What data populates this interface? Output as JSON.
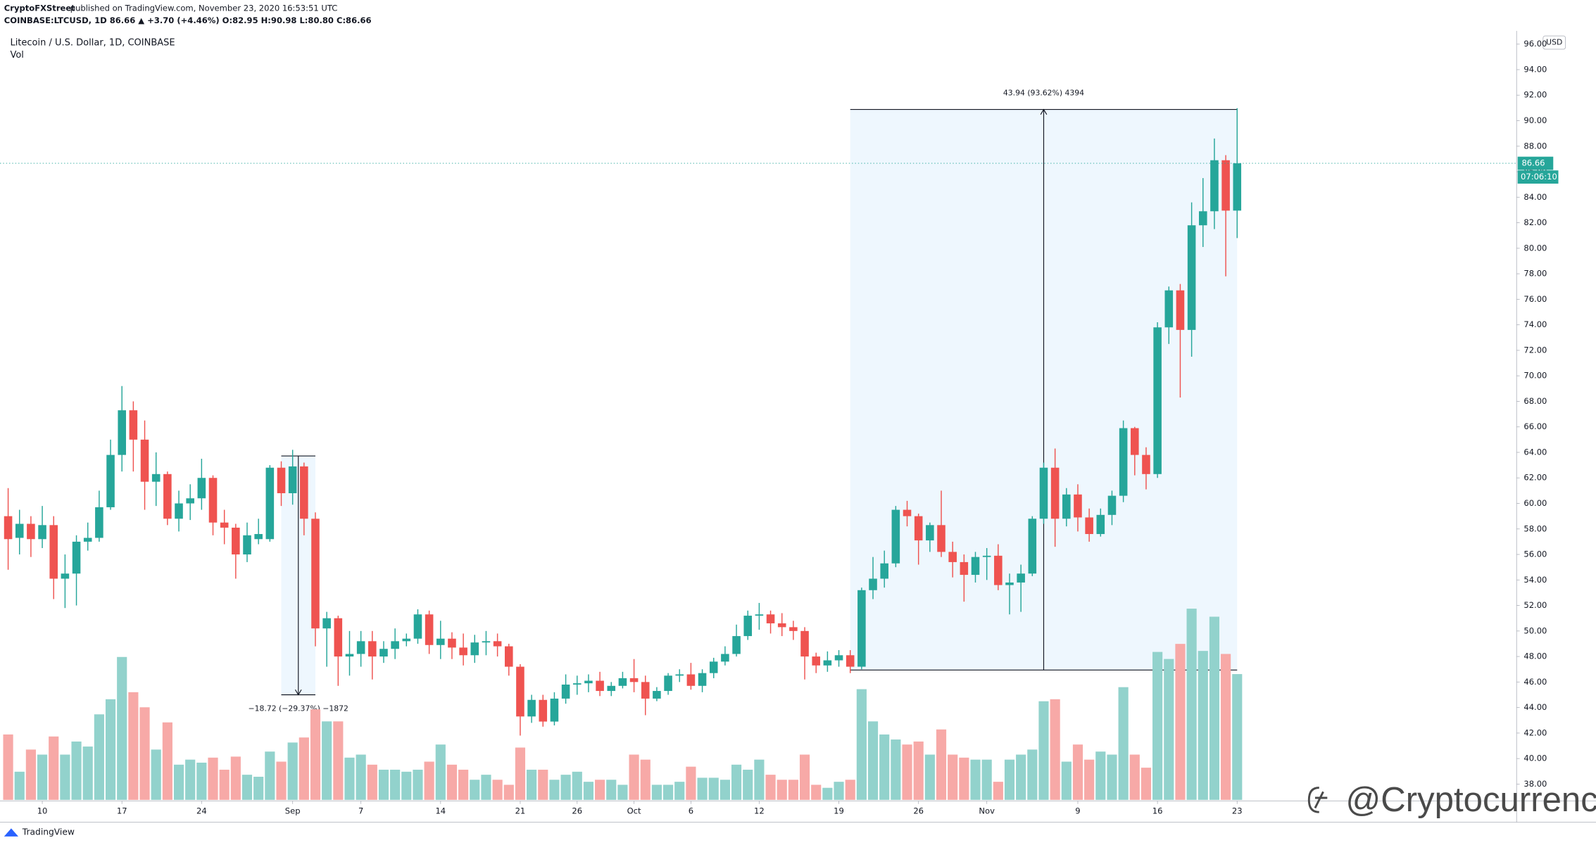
{
  "chart_data": {
    "type": "candlestick",
    "author": "CryptoFXStreet",
    "published": "published on TradingView.com, November 23, 2020 16:53:51 UTC",
    "symbol_line": "COINBASE:LTCUSD, 1D  86.66  ▲ +3.70 (+4.46%)  O:82.95  H:90.98  L:80.80  C:86.66",
    "title": "Litecoin / U.S. Dollar, 1D, COINBASE",
    "volume_label": "Vol",
    "currency": "USD",
    "footer": "TradingView",
    "watermark": "@Cryptocurrency",
    "up_color": "#26a69a",
    "down_color": "#ef5350",
    "volume_up_color": "#92d2cc",
    "volume_down_color": "#f7a9a7",
    "x": [
      "Aug 7",
      "Aug 8",
      "Aug 9",
      "Aug 10",
      "Aug 11",
      "Aug 12",
      "Aug 13",
      "Aug 14",
      "Aug 15",
      "Aug 16",
      "Aug 17",
      "Aug 18",
      "Aug 19",
      "Aug 20",
      "Aug 21",
      "Aug 22",
      "Aug 23",
      "Aug 24",
      "Aug 25",
      "Aug 26",
      "Aug 27",
      "Aug 28",
      "Aug 29",
      "Aug 30",
      "Aug 31",
      "Sep 1",
      "Sep 2",
      "Sep 3",
      "Sep 4",
      "Sep 5",
      "Sep 6",
      "Sep 7",
      "Sep 8",
      "Sep 9",
      "Sep 10",
      "Sep 11",
      "Sep 12",
      "Sep 13",
      "Sep 14",
      "Sep 15",
      "Sep 16",
      "Sep 17",
      "Sep 18",
      "Sep 19",
      "Sep 20",
      "Sep 21",
      "Sep 22",
      "Sep 23",
      "Sep 24",
      "Sep 25",
      "Sep 26",
      "Sep 27",
      "Sep 28",
      "Sep 29",
      "Sep 30",
      "Oct 1",
      "Oct 2",
      "Oct 3",
      "Oct 4",
      "Oct 5",
      "Oct 6",
      "Oct 7",
      "Oct 8",
      "Oct 9",
      "Oct 10",
      "Oct 11",
      "Oct 12",
      "Oct 13",
      "Oct 14",
      "Oct 15",
      "Oct 16",
      "Oct 17",
      "Oct 18",
      "Oct 19",
      "Oct 20",
      "Oct 21",
      "Oct 22",
      "Oct 23",
      "Oct 24",
      "Oct 25",
      "Oct 26",
      "Oct 27",
      "Oct 28",
      "Oct 29",
      "Oct 30",
      "Oct 31",
      "Nov 1",
      "Nov 2",
      "Nov 3",
      "Nov 4",
      "Nov 5",
      "Nov 6",
      "Nov 7",
      "Nov 8",
      "Nov 9",
      "Nov 10",
      "Nov 11",
      "Nov 12",
      "Nov 13",
      "Nov 14",
      "Nov 15",
      "Nov 16",
      "Nov 17",
      "Nov 18",
      "Nov 19",
      "Nov 20",
      "Nov 21",
      "Nov 22",
      "Nov 23"
    ],
    "open": [
      59,
      57.3,
      58.4,
      57.2,
      58.3,
      54.1,
      54.5,
      57,
      57.3,
      59.7,
      63.8,
      67.3,
      65,
      61.7,
      62.3,
      58.8,
      60,
      60.4,
      62,
      58.5,
      58.1,
      56,
      57.2,
      57.2,
      62.8,
      60.8,
      62.9,
      58.8,
      50.2,
      51,
      48,
      48.2,
      49.2,
      48,
      48.6,
      49.2,
      49.4,
      51.3,
      48.9,
      49.4,
      48.7,
      48.1,
      49.1,
      49.2,
      48.8,
      47.2,
      43.3,
      44.6,
      42.9,
      44.7,
      45.8,
      45.9,
      46.1,
      45.3,
      45.7,
      46.3,
      46,
      44.7,
      45.3,
      46.5,
      46.6,
      45.7,
      46.7,
      47.6,
      48.2,
      49.6,
      51.2,
      51.3,
      50.6,
      50.3,
      50,
      48,
      47.3,
      47.7,
      48.1,
      47.2,
      53.2,
      54.1,
      55.3,
      59.5,
      59,
      57.1,
      58.3,
      56.2,
      55.4,
      54.4,
      55.8,
      55.9,
      53.6,
      53.8,
      54.5,
      58.8,
      62.8,
      58.8,
      60.7,
      58.9,
      57.6,
      59.1,
      60.6,
      65.9,
      63.8,
      62.3,
      73.8,
      76.7,
      73.6,
      81.8,
      82.9,
      86.9,
      82.95
    ],
    "high": [
      61.2,
      59.5,
      59,
      59.8,
      59,
      56,
      57.5,
      58.5,
      61,
      65,
      69.2,
      68,
      66.5,
      64,
      62.5,
      61,
      61.5,
      63.5,
      62.2,
      59.5,
      58.4,
      58.5,
      58.8,
      63,
      63.3,
      64.2,
      63.2,
      59.3,
      51.5,
      51.2,
      50,
      50,
      50,
      49.2,
      50.2,
      49.8,
      51.7,
      51.6,
      50.8,
      49.9,
      49.8,
      49.7,
      50,
      49.8,
      49,
      47.4,
      45,
      45,
      45.2,
      46.6,
      46.5,
      46.6,
      46.8,
      46,
      46.8,
      47.8,
      46.5,
      45.6,
      46.7,
      47,
      47.5,
      47,
      47.9,
      48.8,
      50.5,
      51.6,
      52.2,
      51.6,
      51.4,
      50.8,
      50.3,
      48.3,
      48.4,
      48.5,
      48.5,
      53.4,
      55.8,
      56.3,
      59.8,
      60.2,
      59.2,
      58.5,
      61,
      57,
      56,
      56.2,
      56.5,
      56.8,
      54.5,
      55.2,
      59,
      63.2,
      64.3,
      61.2,
      61.5,
      59.6,
      59.6,
      61,
      66.5,
      66,
      64.4,
      74.2,
      77,
      77.2,
      83.6,
      85.5,
      88.6,
      87.3,
      90.98
    ],
    "low": [
      54.8,
      56,
      55.8,
      56.5,
      52.5,
      51.8,
      52,
      56.3,
      57,
      59.5,
      62.5,
      62.5,
      59.5,
      59.8,
      58.3,
      57.8,
      58.7,
      59.5,
      57.5,
      56.8,
      54.1,
      55.4,
      56.8,
      57,
      59.8,
      59.9,
      57.5,
      48.8,
      47.2,
      45.7,
      46.5,
      47.2,
      46.2,
      47.5,
      47.8,
      48.8,
      49,
      48.2,
      47.8,
      47.8,
      47.3,
      47.5,
      48.1,
      48,
      46.5,
      41.8,
      42.8,
      42.5,
      42.6,
      44.3,
      45,
      45.2,
      44.9,
      44.9,
      45.5,
      45.2,
      43.4,
      44.5,
      45,
      46,
      45.4,
      45.2,
      46.3,
      47.3,
      48,
      49.3,
      50.1,
      49.8,
      49.6,
      49.3,
      46.2,
      46.7,
      46.8,
      47.2,
      46.7,
      47,
      52.5,
      53.4,
      55,
      58.2,
      55.2,
      56.2,
      55.8,
      54.2,
      52.3,
      53.8,
      54,
      53.2,
      51.3,
      51.5,
      54.3,
      58.4,
      56.6,
      58.2,
      57.8,
      57,
      57.4,
      58.3,
      60.1,
      62.2,
      61.1,
      62,
      72.5,
      68.3,
      71.5,
      80.1,
      81.5,
      77.8,
      80.8
    ],
    "close": [
      57.2,
      58.4,
      57.2,
      58.3,
      54.1,
      54.5,
      57,
      57.3,
      59.7,
      63.8,
      67.3,
      65,
      61.7,
      62.3,
      58.8,
      60,
      60.4,
      62,
      58.5,
      58.1,
      56,
      57.5,
      57.6,
      62.8,
      60.8,
      62.9,
      58.8,
      50.2,
      51,
      48,
      48.2,
      49.2,
      48,
      48.6,
      49.2,
      49.4,
      51.3,
      48.9,
      49.4,
      48.7,
      48.1,
      49.1,
      49.2,
      48.8,
      47.2,
      43.3,
      44.6,
      42.9,
      44.7,
      45.8,
      45.9,
      46.1,
      45.3,
      45.7,
      46.3,
      46,
      44.7,
      45.3,
      46.5,
      46.6,
      45.7,
      46.7,
      47.6,
      48.2,
      49.6,
      51.2,
      51.3,
      50.6,
      50.3,
      50,
      48,
      47.3,
      47.7,
      48.1,
      47.2,
      53.2,
      54.1,
      55.3,
      59.5,
      59,
      57.1,
      58.3,
      56.2,
      55.4,
      54.4,
      55.8,
      55.9,
      53.6,
      53.8,
      54.5,
      58.8,
      62.8,
      58.8,
      60.7,
      58.9,
      57.6,
      59.1,
      60.6,
      65.9,
      63.8,
      62.3,
      73.8,
      76.7,
      73.6,
      81.8,
      82.9,
      86.9,
      82.95,
      86.66
    ],
    "volume": [
      65,
      28,
      50,
      45,
      63,
      45,
      58,
      53,
      85,
      100,
      142,
      107,
      92,
      50,
      77,
      35,
      40,
      37,
      42,
      30,
      43,
      25,
      23,
      48,
      38,
      57,
      62,
      90,
      78,
      78,
      42,
      45,
      35,
      30,
      30,
      28,
      30,
      38,
      55,
      35,
      30,
      20,
      25,
      20,
      15,
      52,
      30,
      30,
      20,
      25,
      28,
      18,
      20,
      20,
      15,
      45,
      40,
      15,
      15,
      18,
      33,
      22,
      22,
      20,
      35,
      30,
      40,
      25,
      20,
      20,
      45,
      15,
      12,
      18,
      20,
      110,
      78,
      65,
      60,
      55,
      58,
      45,
      70,
      45,
      42,
      40,
      40,
      18,
      40,
      45,
      50,
      98,
      100,
      38,
      55,
      40,
      48,
      45,
      112,
      45,
      32,
      147,
      140,
      155,
      190,
      148,
      182,
      145,
      125
    ],
    "ylim": [
      37,
      97
    ],
    "yticks": [
      {
        "value": 38,
        "label": "38.00"
      },
      {
        "value": 40,
        "label": "40.00"
      },
      {
        "value": 42,
        "label": "42.00"
      },
      {
        "value": 44,
        "label": "44.00"
      },
      {
        "value": 46,
        "label": "46.00"
      },
      {
        "value": 48,
        "label": "48.00"
      },
      {
        "value": 50,
        "label": "50.00"
      },
      {
        "value": 52,
        "label": "52.00"
      },
      {
        "value": 54,
        "label": "54.00"
      },
      {
        "value": 56,
        "label": "56.00"
      },
      {
        "value": 58,
        "label": "58.00"
      },
      {
        "value": 60,
        "label": "60.00"
      },
      {
        "value": 62,
        "label": "62.00"
      },
      {
        "value": 64,
        "label": "64.00"
      },
      {
        "value": 66,
        "label": "66.00"
      },
      {
        "value": 68,
        "label": "68.00"
      },
      {
        "value": 70,
        "label": "70.00"
      },
      {
        "value": 72,
        "label": "72.00"
      },
      {
        "value": 74,
        "label": "74.00"
      },
      {
        "value": 76,
        "label": "76.00"
      },
      {
        "value": 78,
        "label": "78.00"
      },
      {
        "value": 80,
        "label": "80.00"
      },
      {
        "value": 82,
        "label": "82.00"
      },
      {
        "value": 84,
        "label": "84.00"
      },
      {
        "value": 86,
        "label": "86.00"
      },
      {
        "value": 88,
        "label": "88.00"
      },
      {
        "value": 90,
        "label": "90.00"
      },
      {
        "value": 92,
        "label": "92.00"
      },
      {
        "value": 94,
        "label": "94.00"
      },
      {
        "value": 96,
        "label": "96.00"
      }
    ],
    "xticks": [
      {
        "value": "Aug 10",
        "label": "10"
      },
      {
        "value": "Aug 17",
        "label": "17"
      },
      {
        "value": "Aug 24",
        "label": "24"
      },
      {
        "value": "Sep 1",
        "label": "Sep"
      },
      {
        "value": "Sep 7",
        "label": "7"
      },
      {
        "value": "Sep 14",
        "label": "14"
      },
      {
        "value": "Sep 21",
        "label": "21"
      },
      {
        "value": "Sep 26",
        "label": "26"
      },
      {
        "value": "Oct 1",
        "label": "Oct"
      },
      {
        "value": "Oct 6",
        "label": "6"
      },
      {
        "value": "Oct 12",
        "label": "12"
      },
      {
        "value": "Oct 19",
        "label": "19"
      },
      {
        "value": "Oct 26",
        "label": "26"
      },
      {
        "value": "Nov 1",
        "label": "Nov"
      },
      {
        "value": "Nov 9",
        "label": "9"
      },
      {
        "value": "Nov 16",
        "label": "16"
      },
      {
        "value": "Nov 23",
        "label": "23"
      }
    ],
    "price_line": {
      "value": 86.66,
      "label": "86.66",
      "countdown": "07:06:10"
    },
    "measurements": [
      {
        "start": "Aug 31",
        "end": "Sep 3",
        "from": 63.72,
        "to": 45.0,
        "label": "−18.72 (−29.37%) −1872"
      },
      {
        "start": "Oct 20",
        "end": "Nov 23",
        "from": 46.94,
        "to": 90.88,
        "label": "43.94 (93.62%) 4394"
      }
    ],
    "grid": false
  }
}
